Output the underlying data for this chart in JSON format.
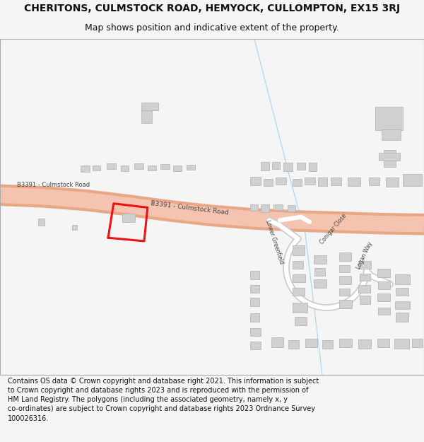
{
  "title": "CHERITONS, CULMSTOCK ROAD, HEMYOCK, CULLOMPTON, EX15 3RJ",
  "subtitle": "Map shows position and indicative extent of the property.",
  "footer": "Contains OS data © Crown copyright and database right 2021. This information is subject to Crown copyright and database rights 2023 and is reproduced with the permission of HM Land Registry. The polygons (including the associated geometry, namely x, y co-ordinates) are subject to Crown copyright and database rights 2023 Ordnance Survey 100026316.",
  "bg_color": "#f5f5f5",
  "map_bg": "#ffffff",
  "road_color": "#f5c4b0",
  "road_outline": "#e8a888",
  "building_color": "#d0d0d0",
  "building_edge": "#b0b0b0",
  "plot_color": "#ee1111",
  "road_label_color": "#444444",
  "water_line_color": "#b0d8ee",
  "title_fontsize": 10,
  "subtitle_fontsize": 9,
  "footer_fontsize": 7.0
}
